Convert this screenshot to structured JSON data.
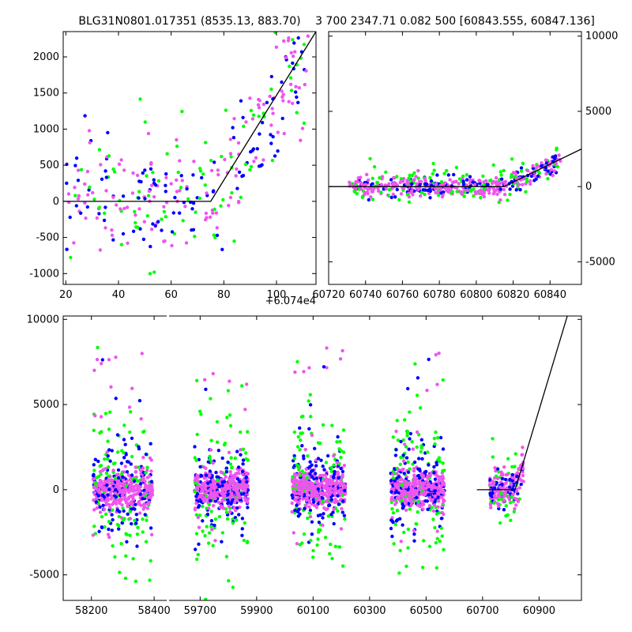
{
  "colors": {
    "green": "#00ff00",
    "blue": "#0000ff",
    "pink": "#ee55ee",
    "model": "#000000"
  },
  "chart_data": [
    {
      "type": "scatter",
      "title": "BLG31N0801.017351 (8535.13, 883.70)",
      "xlabel": "",
      "ylabel": "",
      "x_offset_label": "+6.074e4",
      "xlim": [
        19,
        115
      ],
      "ylim": [
        -1150,
        2350
      ],
      "xticks": [
        "20",
        "40",
        "60",
        "80",
        "100"
      ],
      "yticks": [
        "-1000",
        "-500",
        "0",
        "500",
        "1000",
        "1500",
        "2000"
      ],
      "model": {
        "x": [
          19,
          75,
          115
        ],
        "y": [
          0,
          0,
          2350
        ]
      },
      "series_colors": [
        "#00ff00",
        "#0000ff",
        "#ee55ee"
      ]
    },
    {
      "type": "scatter",
      "title": "3 700 2347.71 0.082 500 [60843.555, 60847.136]",
      "xlim": [
        60720,
        60857
      ],
      "ylim": [
        -6500,
        10300
      ],
      "xticks": [
        "60720",
        "60740",
        "60760",
        "60780",
        "60800",
        "60820",
        "60840"
      ],
      "yticks": [
        "-5000",
        "0",
        "5000",
        "10000"
      ],
      "model": {
        "x": [
          60720,
          60815,
          60857
        ],
        "y": [
          0,
          0,
          2500
        ]
      },
      "series_colors": [
        "#00ff00",
        "#0000ff",
        "#ee55ee"
      ]
    },
    {
      "type": "scatter",
      "title": "",
      "broken_x_axis": true,
      "segments": [
        {
          "xlim": [
            58110,
            58440
          ],
          "xticks": [
            "58200",
            "58400"
          ]
        },
        {
          "xlim": [
            59590,
            61050
          ],
          "xticks": [
            "59700",
            "59900",
            "60100",
            "60300",
            "60500",
            "60700",
            "60900"
          ]
        }
      ],
      "ylim": [
        -6500,
        10200
      ],
      "yticks": [
        "-5000",
        "0",
        "5000",
        "10000"
      ],
      "seasons": [
        {
          "center": 58300,
          "halfwidth": 95
        },
        {
          "center": 59775,
          "halfwidth": 95
        },
        {
          "center": 60120,
          "halfwidth": 95
        },
        {
          "center": 60470,
          "halfwidth": 95
        },
        {
          "center": 60785,
          "halfwidth": 60
        }
      ],
      "model": {
        "x": [
          60680,
          60815,
          61000
        ],
        "y": [
          0,
          0,
          10200
        ]
      },
      "series_colors": [
        "#00ff00",
        "#0000ff",
        "#ee55ee"
      ]
    }
  ]
}
